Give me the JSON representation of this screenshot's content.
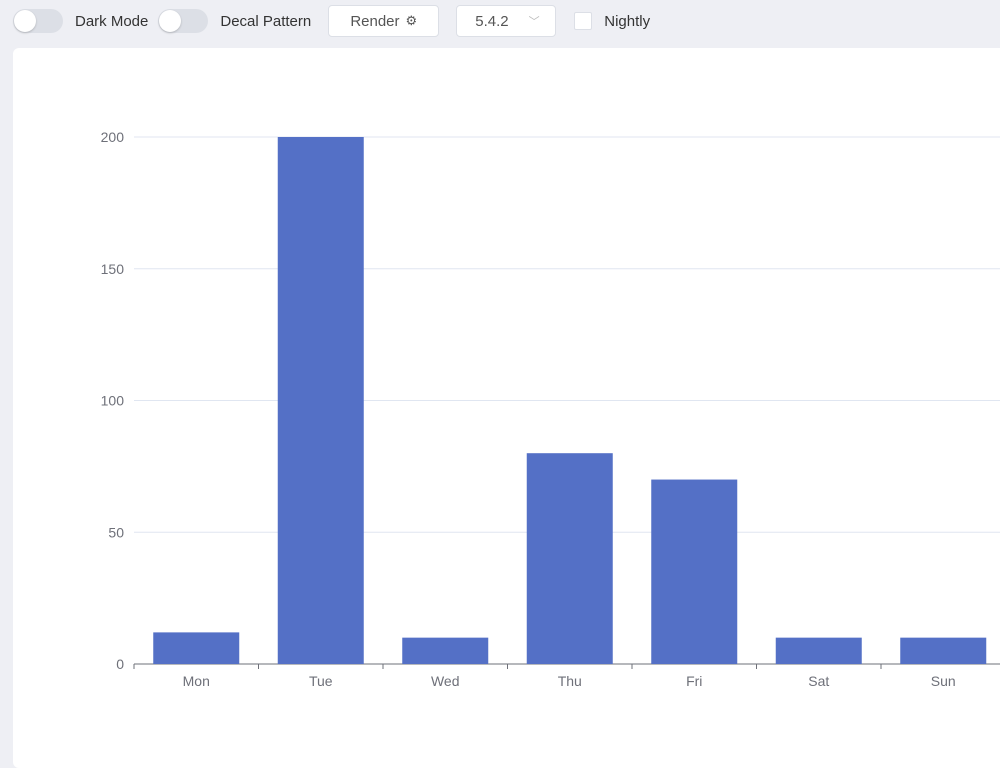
{
  "toolbar": {
    "dark_mode_label": "Dark Mode",
    "decal_label": "Decal Pattern",
    "render_label": "Render",
    "render_icon": "gear-icon",
    "version_value": "5.4.2",
    "nightly_label": "Nightly"
  },
  "chart_data": {
    "type": "bar",
    "categories": [
      "Mon",
      "Tue",
      "Wed",
      "Thu",
      "Fri",
      "Sat",
      "Sun"
    ],
    "values": [
      12,
      200,
      10,
      80,
      70,
      10,
      10
    ],
    "ylim": [
      0,
      200
    ],
    "yticks": [
      "0",
      "50",
      "100",
      "150",
      "200"
    ],
    "grid": true,
    "color": "#5470c6"
  }
}
